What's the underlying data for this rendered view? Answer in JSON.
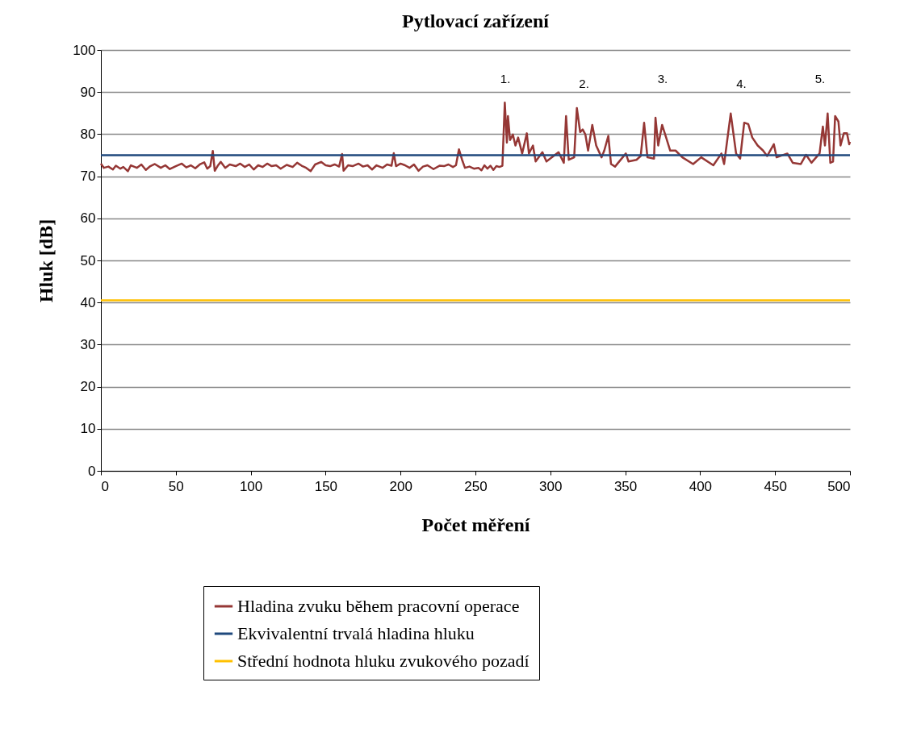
{
  "chart_data": {
    "type": "line",
    "title": "Pytlovací zařízení",
    "xlabel": "Počet měření",
    "ylabel": "Hluk [dB]",
    "xlim": [
      0,
      500
    ],
    "xticks": [
      0,
      50,
      100,
      150,
      200,
      250,
      300,
      350,
      400,
      450,
      500
    ],
    "ylim": [
      0,
      100
    ],
    "yticks": [
      0,
      10,
      20,
      30,
      40,
      50,
      60,
      70,
      80,
      90,
      100
    ],
    "grid": "y",
    "legend": "bottom",
    "line_style": "solid",
    "marker": "none",
    "annotations": [
      "1.",
      "2.",
      "3.",
      "4.",
      "5."
    ],
    "series": [
      {
        "name": "Hladina zvuku během pracovní operace",
        "color": "#953735",
        "x": [
          0,
          2,
          5,
          8,
          10,
          13,
          15,
          18,
          20,
          24,
          27,
          30,
          33,
          36,
          40,
          43,
          46,
          50,
          54,
          57,
          60,
          63,
          66,
          69,
          71,
          73,
          74.7,
          76,
          78,
          80,
          83,
          86,
          90,
          93,
          96,
          99,
          102,
          105,
          108,
          111,
          114,
          117,
          120,
          124,
          128,
          131,
          134,
          137,
          140,
          143,
          147,
          150,
          153,
          156,
          159,
          161,
          162,
          165,
          168,
          172,
          175,
          178,
          181,
          184,
          188,
          191,
          194,
          195.5,
          197,
          200,
          203,
          206,
          209,
          212,
          215,
          218,
          222,
          226,
          229,
          232,
          235,
          237,
          239,
          241,
          243,
          246,
          249,
          252,
          254,
          256,
          258,
          260,
          262,
          264,
          266,
          268,
          269.6,
          271,
          271.7,
          273.1,
          275,
          276.7,
          278.5,
          281.2,
          284.3,
          285.7,
          288.4,
          290.2,
          294.7,
          297.4,
          305.5,
          309,
          310.5,
          312.3,
          315.9,
          317.7,
          319.9,
          321.6,
          323.4,
          325.2,
          328,
          330.6,
          334.2,
          336,
          338.7,
          340.5,
          343.2,
          350.4,
          352.2,
          357.5,
          360.3,
          362.6,
          364.8,
          369.2,
          370.2,
          372,
          374.6,
          377.3,
          380,
          383.6,
          388.1,
          395.3,
          400.7,
          408.8,
          414.2,
          416,
          420.4,
          424,
          426.7,
          429.4,
          432.1,
          434.8,
          438.4,
          442,
          444.7,
          449.2,
          451,
          458.2,
          461.8,
          467.2,
          470.7,
          474.3,
          479.7,
          481.9,
          483.3,
          485.1,
          486.9,
          488.7,
          490.1,
          492.3,
          493.7,
          495.9,
          498,
          499.5,
          500
        ],
        "values": [
          73,
          72,
          72.3,
          71.6,
          72.5,
          71.8,
          72.2,
          71.2,
          72.6,
          72,
          72.8,
          71.5,
          72.4,
          72.9,
          72,
          72.6,
          71.7,
          72.4,
          73,
          72.1,
          72.6,
          71.9,
          72.8,
          73.3,
          71.8,
          72.4,
          76,
          71.3,
          72.5,
          73.4,
          72,
          72.8,
          72.4,
          73,
          72.2,
          72.8,
          71.6,
          72.6,
          72.2,
          73,
          72.4,
          72.6,
          71.8,
          72.7,
          72.2,
          73.2,
          72.5,
          72,
          71.2,
          72.8,
          73.4,
          72.6,
          72.4,
          72.8,
          72.3,
          75.3,
          71.3,
          72.6,
          72.4,
          73,
          72.3,
          72.6,
          71.6,
          72.6,
          72,
          72.8,
          72.5,
          75.5,
          72.4,
          73,
          72.6,
          72,
          72.8,
          71.3,
          72.3,
          72.6,
          71.7,
          72.5,
          72.4,
          72.8,
          72.2,
          72.6,
          76.4,
          74,
          72,
          72.3,
          71.8,
          72,
          71.4,
          72.6,
          71.8,
          72.5,
          71.5,
          72.4,
          72.2,
          72.5,
          87.5,
          78,
          84.3,
          78.6,
          79.9,
          77.3,
          79.2,
          75.4,
          80.2,
          75.4,
          77.3,
          73.5,
          75.7,
          73.5,
          75.7,
          73.2,
          84.3,
          73.9,
          74.5,
          86.2,
          80.5,
          81.1,
          79.9,
          76.1,
          82.2,
          77.3,
          74.5,
          76.1,
          79.6,
          72.9,
          72.3,
          75.4,
          73.5,
          73.9,
          74.8,
          82.7,
          74.5,
          74.2,
          83.9,
          77.3,
          82.2,
          79.2,
          76.1,
          76.1,
          74.5,
          72.9,
          74.5,
          72.6,
          75.4,
          72.9,
          84.9,
          75.4,
          74.2,
          82.7,
          82.4,
          79.2,
          77.3,
          76.1,
          74.8,
          77.6,
          74.5,
          75.4,
          73.2,
          72.9,
          75.1,
          73.2,
          75.4,
          81.8,
          77.3,
          84.9,
          73.2,
          73.5,
          84.3,
          83,
          77.3,
          80.2,
          80.2,
          77.6,
          78.2
        ]
      },
      {
        "name": "Ekvivalentní trvalá hladina hluku",
        "color": "#1f497d",
        "x": [
          0,
          500
        ],
        "values": [
          75,
          75
        ]
      },
      {
        "name": "Střední hodnota hluku zvukového pozadí",
        "color": "#ffc000",
        "x": [
          0,
          500
        ],
        "values": [
          40.5,
          40.5
        ]
      }
    ]
  }
}
